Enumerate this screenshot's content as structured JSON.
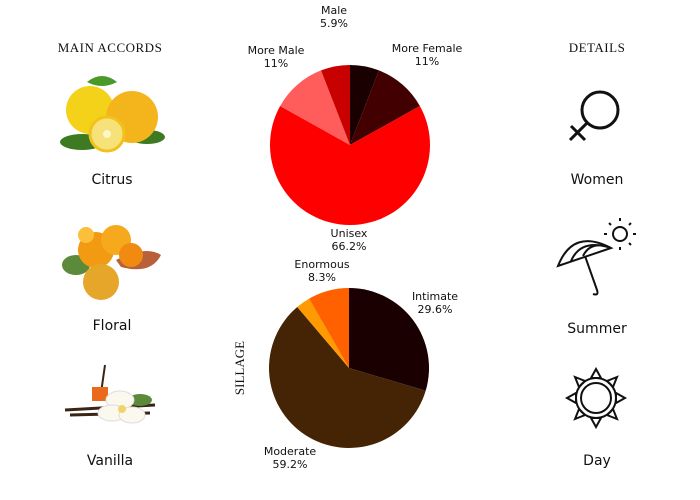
{
  "left": {
    "title": "MAIN ACCORDS",
    "accords": [
      {
        "label": "Citrus"
      },
      {
        "label": "Floral"
      },
      {
        "label": "Vanilla"
      }
    ]
  },
  "right": {
    "title": "DETAILS",
    "items": [
      {
        "label": "Women",
        "icon": "female-symbol-icon"
      },
      {
        "label": "Summer",
        "icon": "umbrella-sun-icon"
      },
      {
        "label": "Day",
        "icon": "sun-icon"
      }
    ]
  },
  "chart_data": [
    {
      "type": "pie",
      "title": "",
      "slices": [
        {
          "label": "",
          "value": 5.9,
          "display": "",
          "color": "#1a0000"
        },
        {
          "label": "More Female",
          "value": 11,
          "display": "11%",
          "color": "#420000"
        },
        {
          "label": "Unisex",
          "value": 66.2,
          "display": "66.2%",
          "color": "#ff0000"
        },
        {
          "label": "More Male",
          "value": 11,
          "display": "11%",
          "color": "#ff5c5c"
        },
        {
          "label": "Male",
          "value": 5.9,
          "display": "5.9%",
          "color": "#c80000"
        }
      ]
    },
    {
      "type": "pie",
      "title": "SILLAGE",
      "slices": [
        {
          "label": "Intimate",
          "value": 29.6,
          "display": "29.6%",
          "color": "#1a0000"
        },
        {
          "label": "Moderate",
          "value": 59.2,
          "display": "59.2%",
          "color": "#452405"
        },
        {
          "label": "",
          "value": 2.9,
          "display": "",
          "color": "#ff9a00"
        },
        {
          "label": "Enormous",
          "value": 8.3,
          "display": "8.3%",
          "color": "#ff6000"
        }
      ]
    }
  ]
}
